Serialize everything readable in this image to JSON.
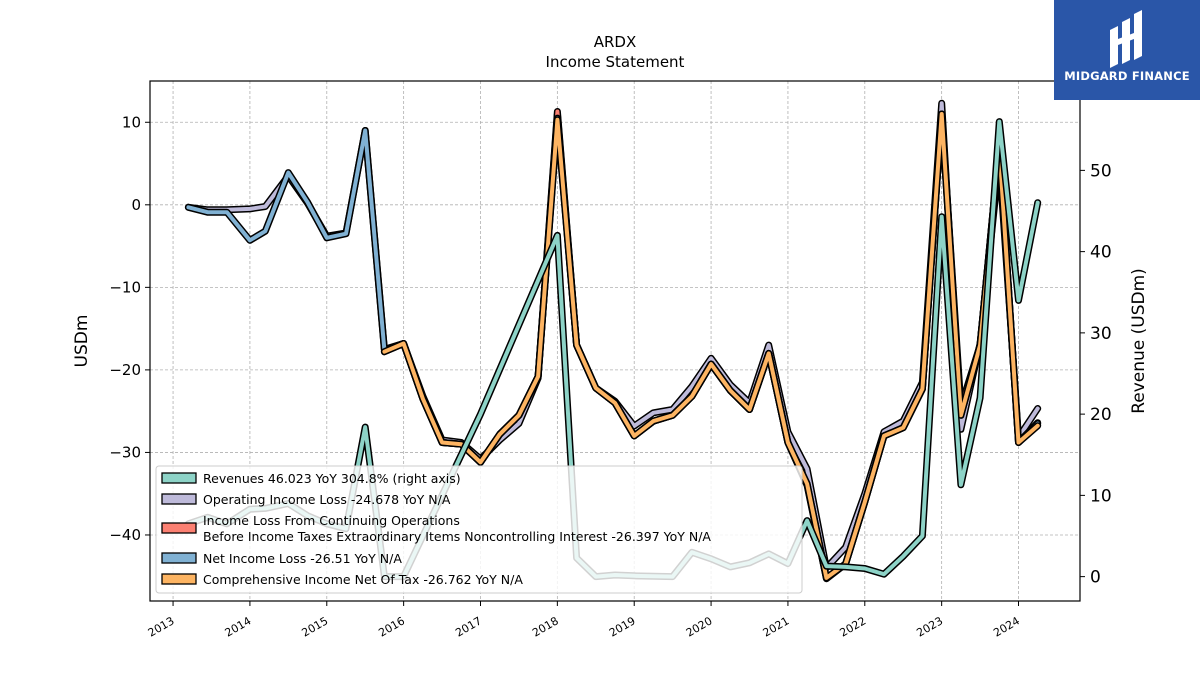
{
  "brand": {
    "name": "MIDGARD FINANCE"
  },
  "chart_data": {
    "type": "line",
    "title": "ARDX",
    "subtitle": "Income Statement",
    "ylabel": "USDm",
    "ylabel_right": "Revenue (USDm)",
    "ylim": [
      -48,
      15
    ],
    "ylim_right": [
      -3,
      61
    ],
    "yticks": [
      -40,
      -30,
      -20,
      -10,
      0,
      10
    ],
    "yticks_right": [
      0,
      10,
      20,
      30,
      40,
      50
    ],
    "xlim": [
      2012.7,
      2024.8
    ],
    "xticks": [
      2013,
      2014,
      2015,
      2016,
      2017,
      2018,
      2019,
      2020,
      2021,
      2022,
      2023,
      2024
    ],
    "grid": true,
    "legend_position": "lower-left",
    "series": [
      {
        "name": "Revenues  46.023 YoY 304.8% (right axis)",
        "axis": "right",
        "color": "#8dd3c7",
        "points": [
          [
            2013.2,
            6.5
          ],
          [
            2013.45,
            7.3
          ],
          [
            2013.7,
            6.5
          ],
          [
            2014.0,
            8.3
          ],
          [
            2014.2,
            8.4
          ],
          [
            2014.5,
            9.0
          ],
          [
            2014.75,
            7.5
          ],
          [
            2015.0,
            6.5
          ],
          [
            2015.25,
            5.9
          ],
          [
            2015.5,
            18.4
          ],
          [
            2015.75,
            0.0
          ],
          [
            2016.0,
            0.0
          ],
          [
            2017.0,
            20.0
          ],
          [
            2018.0,
            42.0
          ],
          [
            2018.25,
            2.3
          ],
          [
            2018.5,
            0.0
          ],
          [
            2018.75,
            0.2
          ],
          [
            2019.0,
            0.1
          ],
          [
            2019.5,
            0.0
          ],
          [
            2019.75,
            3.0
          ],
          [
            2020.0,
            2.2
          ],
          [
            2020.25,
            1.2
          ],
          [
            2020.5,
            1.7
          ],
          [
            2020.75,
            2.8
          ],
          [
            2021.0,
            1.6
          ],
          [
            2021.25,
            6.9
          ],
          [
            2021.5,
            1.3
          ],
          [
            2021.75,
            1.2
          ],
          [
            2022.0,
            1.0
          ],
          [
            2022.25,
            0.3
          ],
          [
            2022.5,
            2.5
          ],
          [
            2022.75,
            5.0
          ],
          [
            2023.0,
            44.3
          ],
          [
            2023.25,
            11.3
          ],
          [
            2023.5,
            22.0
          ],
          [
            2023.75,
            56.0
          ],
          [
            2024.0,
            34.0
          ],
          [
            2024.25,
            46.023
          ]
        ]
      },
      {
        "name": "Operating Income Loss  -24.678 YoY N/A",
        "axis": "left",
        "color": "#bebada",
        "points": [
          [
            2013.2,
            -0.3
          ],
          [
            2013.45,
            -0.6
          ],
          [
            2013.7,
            -0.6
          ],
          [
            2014.0,
            -0.5
          ],
          [
            2014.2,
            -0.2
          ],
          [
            2014.5,
            3.5
          ],
          [
            2014.75,
            0.2
          ],
          [
            2015.0,
            -3.8
          ],
          [
            2015.25,
            -3.4
          ],
          [
            2015.5,
            9.0
          ],
          [
            2015.75,
            -17.5
          ],
          [
            2016.0,
            -16.8
          ],
          [
            2016.25,
            -23.2
          ],
          [
            2016.5,
            -28.5
          ],
          [
            2016.75,
            -28.8
          ],
          [
            2017.0,
            -30.8
          ],
          [
            2017.25,
            -28.5
          ],
          [
            2017.5,
            -26.5
          ],
          [
            2017.75,
            -21.0
          ],
          [
            2018.0,
            11.0
          ],
          [
            2018.25,
            -17.0
          ],
          [
            2018.5,
            -22.2
          ],
          [
            2018.75,
            -23.8
          ],
          [
            2019.0,
            -26.8
          ],
          [
            2019.25,
            -25.2
          ],
          [
            2019.5,
            -24.8
          ],
          [
            2019.75,
            -22.0
          ],
          [
            2020.0,
            -18.6
          ],
          [
            2020.25,
            -21.8
          ],
          [
            2020.5,
            -24.0
          ],
          [
            2020.75,
            -17.0
          ],
          [
            2021.0,
            -27.5
          ],
          [
            2021.25,
            -32.0
          ],
          [
            2021.5,
            -44.0
          ],
          [
            2021.75,
            -41.5
          ],
          [
            2022.0,
            -35.0
          ],
          [
            2022.25,
            -27.5
          ],
          [
            2022.5,
            -26.2
          ],
          [
            2022.75,
            -21.5
          ],
          [
            2023.0,
            12.3
          ],
          [
            2023.25,
            -27.2
          ],
          [
            2023.5,
            -16.8
          ],
          [
            2023.75,
            5.5
          ],
          [
            2024.0,
            -28.2
          ],
          [
            2024.25,
            -24.678
          ]
        ]
      },
      {
        "name": "Income Loss From Continuing Operations Before Income Taxes Extraordinary Items Noncontrolling Interest  -26.397 YoY N/A",
        "name_lines": [
          "Income Loss From Continuing Operations",
          "Before Income Taxes Extraordinary Items Noncontrolling Interest  -26.397 YoY N/A"
        ],
        "axis": "left",
        "color": "#fb8072",
        "points": [
          [
            2015.75,
            -17.8
          ],
          [
            2016.0,
            -16.8
          ],
          [
            2016.25,
            -23.5
          ],
          [
            2016.5,
            -28.8
          ],
          [
            2016.75,
            -29.0
          ],
          [
            2017.0,
            -31.2
          ],
          [
            2017.25,
            -27.8
          ],
          [
            2017.5,
            -25.5
          ],
          [
            2017.75,
            -20.8
          ],
          [
            2018.0,
            11.3
          ],
          [
            2018.25,
            -17.0
          ],
          [
            2018.5,
            -22.2
          ],
          [
            2018.75,
            -24.0
          ],
          [
            2019.0,
            -28.0
          ],
          [
            2019.25,
            -26.2
          ],
          [
            2019.5,
            -25.5
          ],
          [
            2019.75,
            -23.2
          ],
          [
            2020.0,
            -19.3
          ],
          [
            2020.25,
            -22.5
          ],
          [
            2020.5,
            -24.8
          ],
          [
            2020.75,
            -18.0
          ],
          [
            2021.0,
            -28.8
          ],
          [
            2021.25,
            -34.0
          ],
          [
            2021.5,
            -45.3
          ],
          [
            2021.75,
            -43.5
          ],
          [
            2022.0,
            -36.0
          ],
          [
            2022.25,
            -28.0
          ],
          [
            2022.5,
            -27.0
          ],
          [
            2022.75,
            -22.3
          ],
          [
            2023.0,
            11.0
          ],
          [
            2023.25,
            -24.5
          ],
          [
            2023.5,
            -17.0
          ],
          [
            2023.75,
            7.0
          ],
          [
            2024.0,
            -28.8
          ],
          [
            2024.25,
            -26.397
          ]
        ]
      },
      {
        "name": "Net Income Loss  -26.51 YoY N/A",
        "axis": "left",
        "color": "#80b1d3",
        "points": [
          [
            2013.2,
            -0.3
          ],
          [
            2013.45,
            -0.9
          ],
          [
            2013.7,
            -0.9
          ],
          [
            2014.0,
            -4.3
          ],
          [
            2014.2,
            -3.2
          ],
          [
            2014.5,
            3.9
          ],
          [
            2014.75,
            0.3
          ],
          [
            2015.0,
            -4.0
          ],
          [
            2015.25,
            -3.5
          ],
          [
            2015.5,
            9.0
          ],
          [
            2015.75,
            -17.6
          ],
          [
            2016.0,
            -16.8
          ],
          [
            2016.25,
            -23.5
          ],
          [
            2016.5,
            -28.8
          ],
          [
            2016.75,
            -29.0
          ],
          [
            2017.0,
            -31.2
          ],
          [
            2017.25,
            -27.8
          ],
          [
            2017.5,
            -25.5
          ],
          [
            2017.75,
            -20.8
          ],
          [
            2018.0,
            10.5
          ],
          [
            2018.25,
            -17.0
          ],
          [
            2018.5,
            -22.2
          ],
          [
            2018.75,
            -24.0
          ],
          [
            2019.0,
            -28.0
          ],
          [
            2019.25,
            -26.2
          ],
          [
            2019.5,
            -25.5
          ],
          [
            2019.75,
            -23.2
          ],
          [
            2020.0,
            -19.3
          ],
          [
            2020.25,
            -22.5
          ],
          [
            2020.5,
            -24.8
          ],
          [
            2020.75,
            -18.0
          ],
          [
            2021.0,
            -28.8
          ],
          [
            2021.25,
            -33.8
          ],
          [
            2021.5,
            -45.2
          ],
          [
            2021.75,
            -43.5
          ],
          [
            2022.0,
            -36.0
          ],
          [
            2022.25,
            -28.0
          ],
          [
            2022.5,
            -27.0
          ],
          [
            2022.75,
            -22.3
          ],
          [
            2023.0,
            11.0
          ],
          [
            2023.25,
            -25.5
          ],
          [
            2023.5,
            -17.0
          ],
          [
            2023.75,
            7.0
          ],
          [
            2024.0,
            -28.8
          ],
          [
            2024.25,
            -26.51
          ]
        ]
      },
      {
        "name": "Comprehensive Income Net Of Tax  -26.762 YoY N/A",
        "axis": "left",
        "color": "#fdb462",
        "points": [
          [
            2015.75,
            -17.8
          ],
          [
            2016.0,
            -16.8
          ],
          [
            2016.25,
            -23.5
          ],
          [
            2016.5,
            -28.8
          ],
          [
            2016.75,
            -29.0
          ],
          [
            2017.0,
            -31.2
          ],
          [
            2017.25,
            -27.8
          ],
          [
            2017.5,
            -25.5
          ],
          [
            2017.75,
            -20.8
          ],
          [
            2018.0,
            10.3
          ],
          [
            2018.25,
            -17.0
          ],
          [
            2018.5,
            -22.2
          ],
          [
            2018.75,
            -24.0
          ],
          [
            2019.0,
            -28.0
          ],
          [
            2019.25,
            -26.2
          ],
          [
            2019.5,
            -25.5
          ],
          [
            2019.75,
            -23.2
          ],
          [
            2020.0,
            -19.3
          ],
          [
            2020.25,
            -22.5
          ],
          [
            2020.5,
            -24.8
          ],
          [
            2020.75,
            -18.0
          ],
          [
            2021.0,
            -28.8
          ],
          [
            2021.25,
            -33.8
          ],
          [
            2021.5,
            -45.2
          ],
          [
            2021.75,
            -43.5
          ],
          [
            2022.0,
            -36.0
          ],
          [
            2022.25,
            -28.0
          ],
          [
            2022.5,
            -27.0
          ],
          [
            2022.75,
            -22.3
          ],
          [
            2023.0,
            11.0
          ],
          [
            2023.25,
            -25.5
          ],
          [
            2023.5,
            -17.0
          ],
          [
            2023.75,
            7.0
          ],
          [
            2024.0,
            -28.8
          ],
          [
            2024.25,
            -26.762
          ]
        ]
      }
    ]
  }
}
